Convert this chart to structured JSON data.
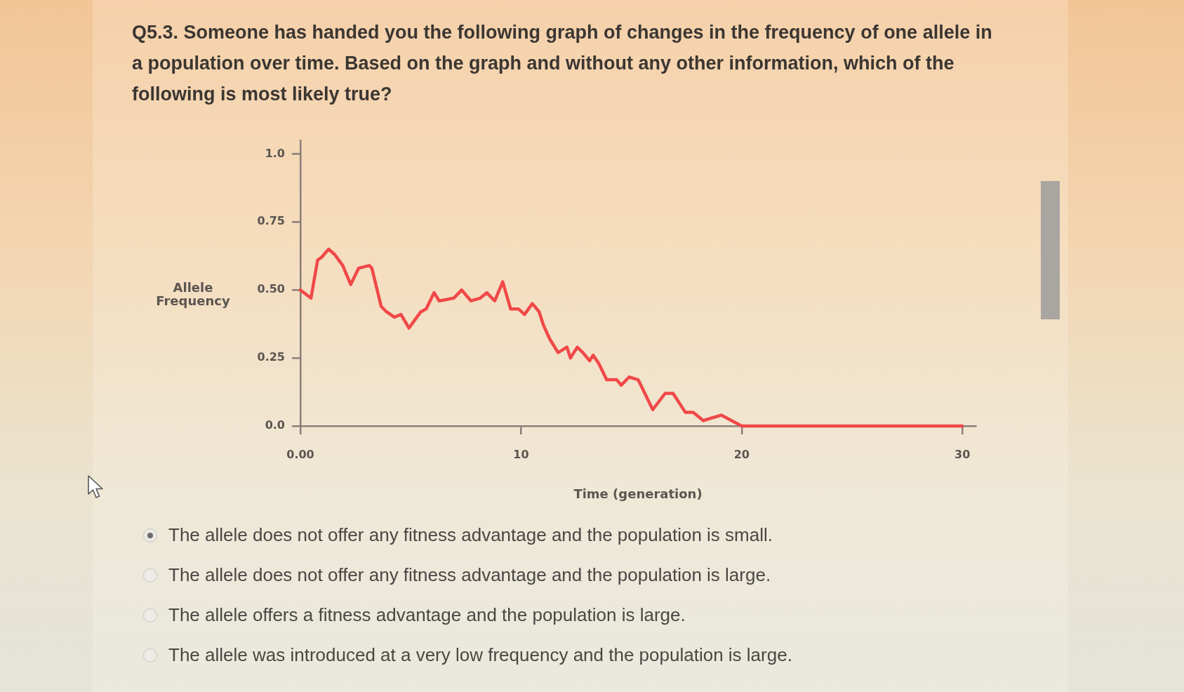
{
  "chart_data": {
    "type": "line",
    "title": "Q5.3. Someone has handed you the following graph of changes in the frequency of one allele in a population over time. Based on the graph and without any other information, which of the following is most likely true?",
    "xlabel": "Time (generation)",
    "ylabel": "Allele Frequency",
    "annotations": [
      "The allele does not offer any fitness advantage and the population is small.",
      "The allele does not offer any fitness advantage and the population is large.",
      "The allele offers a fitness advantage and the population is large.",
      "The allele was introduced at a very low frequency and the population is large."
    ],
    "x": [
      0,
      0.48,
      0.78,
      0.96,
      1.28,
      1.56,
      1.92,
      2.28,
      2.64,
      3.12,
      3.24,
      3.66,
      3.9,
      4.26,
      4.56,
      4.92,
      5.46,
      5.7,
      6.06,
      6.29,
      6.95,
      7.31,
      7.73,
      8.15,
      8.45,
      8.81,
      9.17,
      9.53,
      9.89,
      10.16,
      10.51,
      10.82,
      11.02,
      11.3,
      11.68,
      12.08,
      12.24,
      12.55,
      12.8,
      13.11,
      13.27,
      13.52,
      13.88,
      14.34,
      14.54,
      14.9,
      15.31,
      15.97,
      16.53,
      16.89,
      17.45,
      17.8,
      18.26,
      19.08,
      20,
      30
    ],
    "series": [
      {
        "color": "#f04848",
        "values": [
          0.5,
          0.47,
          0.61,
          0.62,
          0.65,
          0.63,
          0.59,
          0.52,
          0.58,
          0.59,
          0.58,
          0.44,
          0.42,
          0.4,
          0.41,
          0.36,
          0.42,
          0.43,
          0.49,
          0.46,
          0.47,
          0.5,
          0.46,
          0.47,
          0.49,
          0.46,
          0.53,
          0.43,
          0.43,
          0.41,
          0.45,
          0.42,
          0.37,
          0.32,
          0.27,
          0.29,
          0.25,
          0.29,
          0.27,
          0.24,
          0.26,
          0.23,
          0.17,
          0.17,
          0.15,
          0.18,
          0.17,
          0.06,
          0.12,
          0.12,
          0.05,
          0.05,
          0.02,
          0.04,
          0,
          0
        ]
      }
    ],
    "xlim": [
      0,
      30.6
    ],
    "ylim": [
      0,
      1.05
    ],
    "xticks": [
      {
        "value": 0,
        "label": "0.00"
      },
      10,
      20,
      30
    ],
    "yticks": [
      {
        "value": 0,
        "label": "0.0"
      },
      0.25,
      {
        "value": 0.5,
        "label": "0.50"
      },
      0.75,
      {
        "value": 1,
        "label": "1.0"
      }
    ],
    "grid": false,
    "legend": false,
    "marker": "none",
    "line_style": "solid"
  }
}
